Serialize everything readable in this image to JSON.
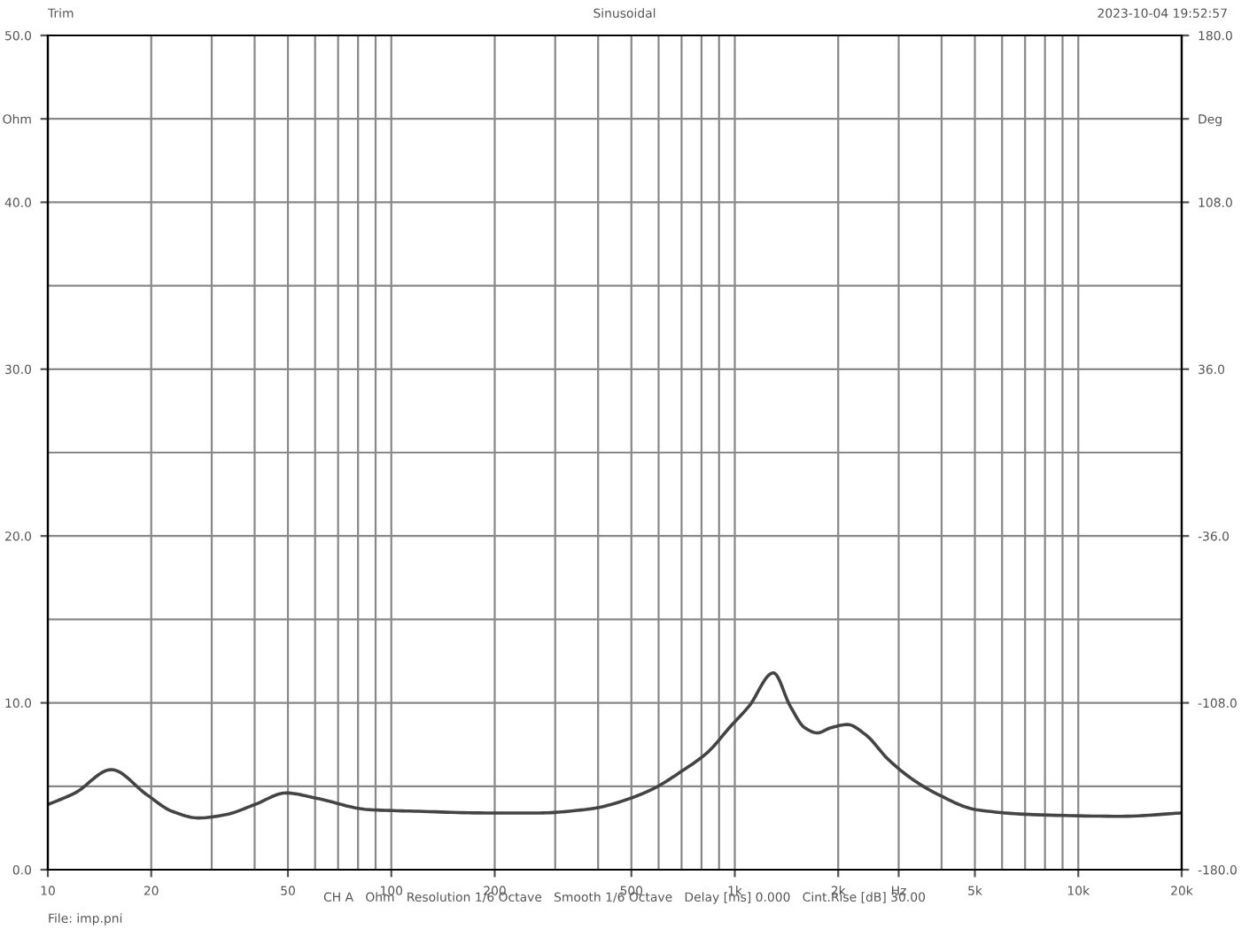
{
  "chart_data": {
    "type": "line",
    "title": "Sinusoidal",
    "annotations": [
      "Trim",
      "2023-10-04 19:52:57",
      "CH A   Ohm   Resolution 1/6 Octave   Smooth 1/6 Octave   Delay [ms] 0.000   Cint.Rise [dB] 30.00",
      "File: imp.pni"
    ],
    "x": [
      10,
      12,
      15.3,
      19.4,
      23,
      27.5,
      33,
      40,
      49.4,
      60,
      86,
      120,
      188,
      270,
      365,
      395,
      500,
      585,
      700,
      830,
      973,
      1100,
      1295,
      1450,
      1600,
      1738,
      1900,
      2128,
      2400,
      2800,
      3300,
      3830,
      5040,
      7450,
      13400,
      20000
    ],
    "series": [
      {
        "color": "#444444",
        "values": [
          3.9,
          4.6,
          6.0,
          4.5,
          3.5,
          3.1,
          3.3,
          3.9,
          4.6,
          4.3,
          3.6,
          3.5,
          3.4,
          3.4,
          3.6,
          3.7,
          4.3,
          4.9,
          5.9,
          7.0,
          8.6,
          9.8,
          11.8,
          9.8,
          8.5,
          8.2,
          8.5,
          8.7,
          8.1,
          6.6,
          5.4,
          4.6,
          3.6,
          3.3,
          3.2,
          3.4
        ]
      }
    ],
    "log": "x",
    "xlim": [
      10,
      20000
    ],
    "xticks": [
      10,
      20,
      50,
      100,
      200,
      500,
      {
        "value": 1000,
        "label": "1k"
      },
      {
        "value": 2000,
        "label": "2k"
      },
      {
        "value": 3000,
        "label": "Hz"
      },
      {
        "value": 5000,
        "label": "5k"
      },
      {
        "value": 10000,
        "label": "10k"
      },
      {
        "value": 20000,
        "label": "20k"
      }
    ],
    "ylim": [
      0,
      50
    ],
    "yticks": [
      {
        "value": 0,
        "label": "0.0"
      },
      {
        "value": 10,
        "label": "10.0"
      },
      {
        "value": 20,
        "label": "20.0"
      },
      {
        "value": 30,
        "label": "30.0"
      },
      {
        "value": 40,
        "label": "40.0"
      },
      {
        "value": 45,
        "label": "Ohm"
      },
      {
        "value": 50,
        "label": "50.0"
      }
    ],
    "y2lim": [
      -180,
      180
    ],
    "y2ticks": [
      {
        "value": -180,
        "label": "-180.0"
      },
      {
        "value": -108,
        "label": "-108.0"
      },
      {
        "value": -36,
        "label": "-36.0"
      },
      {
        "value": 36,
        "label": "36.0"
      },
      {
        "value": 108,
        "label": "108.0"
      },
      {
        "value": 144,
        "label": "Deg"
      },
      {
        "value": 180,
        "label": "180.0"
      }
    ],
    "grid": true,
    "line_style": "solid"
  }
}
